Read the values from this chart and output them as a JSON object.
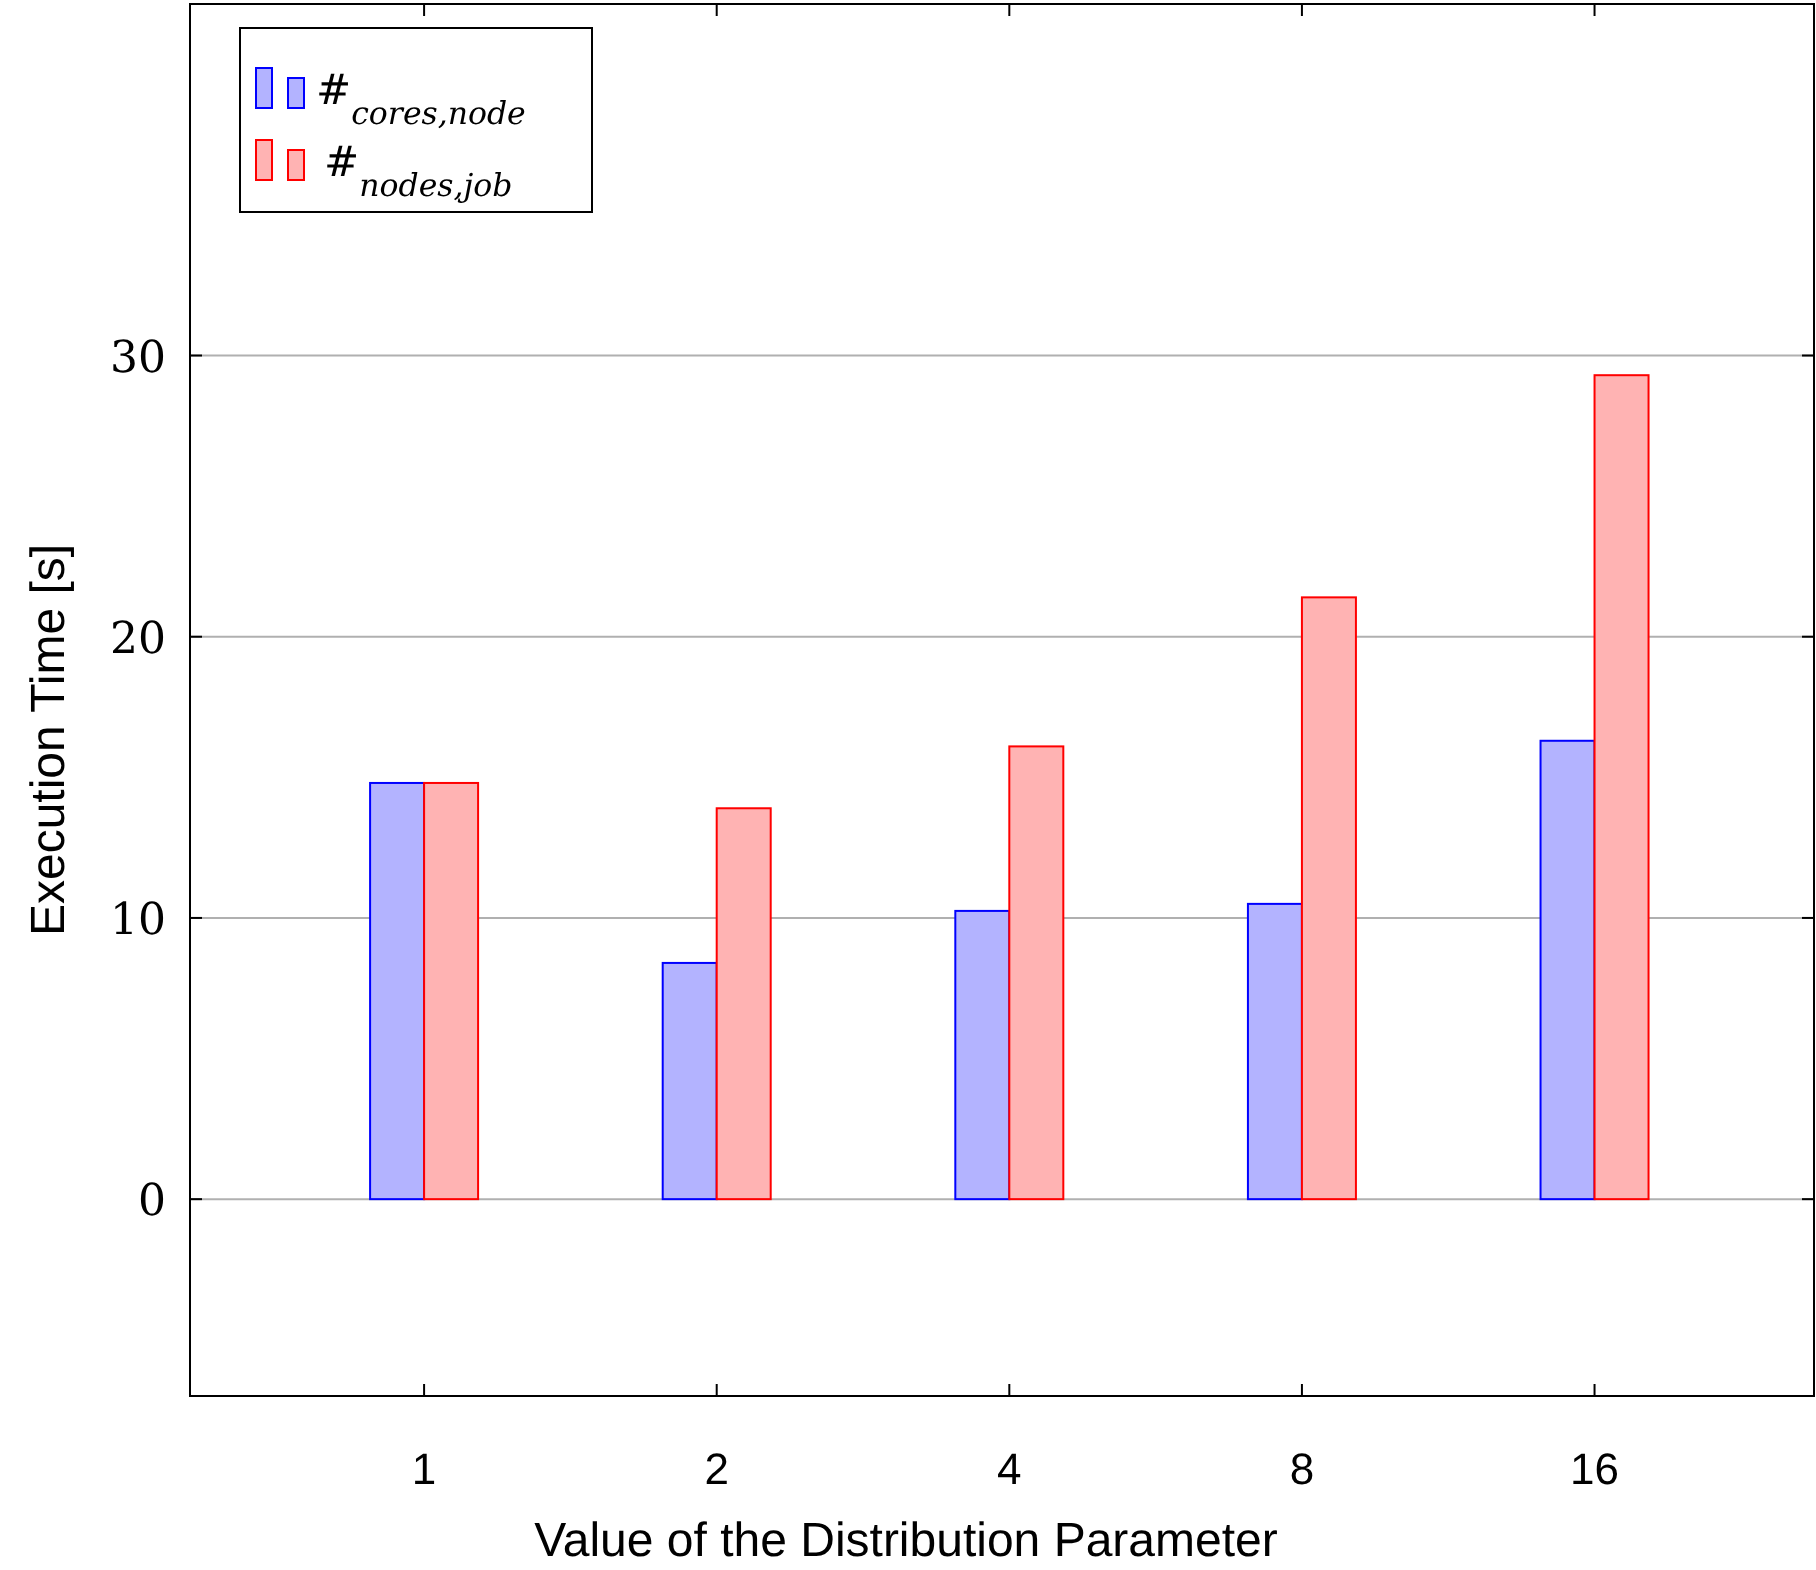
{
  "chart_data": {
    "type": "bar",
    "xlabel": "Value of the Distribution Parameter",
    "ylabel": "Execution Time [s]",
    "categories": [
      "1",
      "2",
      "4",
      "8",
      "16"
    ],
    "series": [
      {
        "name": "#$_{cores,node}$",
        "color": "#b3b3ff",
        "values": [
          14.8,
          8.4,
          10.25,
          10.5,
          16.3
        ]
      },
      {
        "name": "#$_{nodes,job}$",
        "color": "#ffb3b3",
        "values": [
          14.8,
          13.9,
          16.1,
          21.4,
          29.3
        ]
      }
    ],
    "ylim": [
      -7,
      42.5
    ],
    "yticks": [
      0,
      10,
      20,
      30
    ],
    "grid": "y",
    "legend": "top left"
  }
}
